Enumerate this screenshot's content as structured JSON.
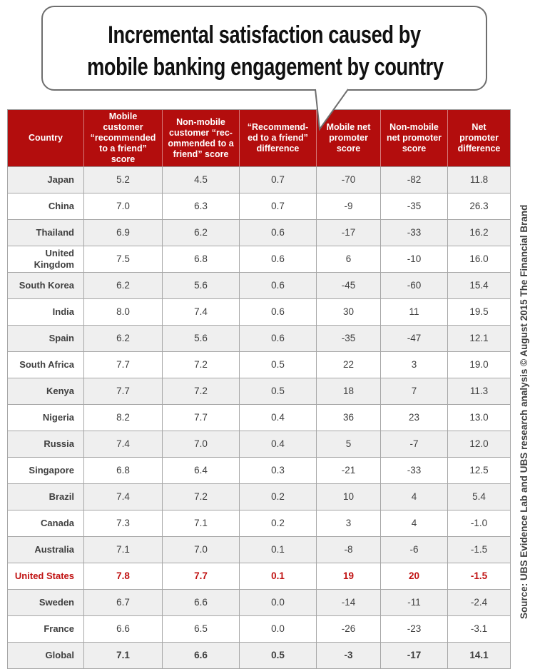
{
  "title": {
    "line1": "Incremental satisfaction caused by",
    "line2": "mobile banking engagement by country"
  },
  "source_note": "Source: UBS Evidence Lab and UBS research analysis © August 2015 The Financial Brand",
  "colors": {
    "header_bg": "#b30d0d",
    "highlight": "#c01212",
    "row_alt": "#efefef",
    "grid": "#a6a6a6",
    "text": "#3f3f3f",
    "bubble_border": "#6e6e6e"
  },
  "chart_data": {
    "type": "table",
    "title": "Incremental satisfaction caused by mobile banking engagement by country",
    "columns": [
      "Country",
      "Mobile customer “recommended to a friend” score",
      "Non-mobile customer “rec-ommended to a friend” score",
      "“Recommend-ed to a friend” difference",
      "Mobile net promoter score",
      "Non-mobile net promoter score",
      "Net promoter difference"
    ],
    "rows": [
      {
        "country": "Japan",
        "values": [
          "5.2",
          "4.5",
          "0.7",
          "-70",
          "-82",
          "11.8"
        ],
        "highlight": false,
        "bold": false
      },
      {
        "country": "China",
        "values": [
          "7.0",
          "6.3",
          "0.7",
          "-9",
          "-35",
          "26.3"
        ],
        "highlight": false,
        "bold": false
      },
      {
        "country": "Thailand",
        "values": [
          "6.9",
          "6.2",
          "0.6",
          "-17",
          "-33",
          "16.2"
        ],
        "highlight": false,
        "bold": false
      },
      {
        "country": "United Kingdom",
        "values": [
          "7.5",
          "6.8",
          "0.6",
          "6",
          "-10",
          "16.0"
        ],
        "highlight": false,
        "bold": false
      },
      {
        "country": "South Korea",
        "values": [
          "6.2",
          "5.6",
          "0.6",
          "-45",
          "-60",
          "15.4"
        ],
        "highlight": false,
        "bold": false
      },
      {
        "country": "India",
        "values": [
          "8.0",
          "7.4",
          "0.6",
          "30",
          "11",
          "19.5"
        ],
        "highlight": false,
        "bold": false
      },
      {
        "country": "Spain",
        "values": [
          "6.2",
          "5.6",
          "0.6",
          "-35",
          "-47",
          "12.1"
        ],
        "highlight": false,
        "bold": false
      },
      {
        "country": "South Africa",
        "values": [
          "7.7",
          "7.2",
          "0.5",
          "22",
          "3",
          "19.0"
        ],
        "highlight": false,
        "bold": false
      },
      {
        "country": "Kenya",
        "values": [
          "7.7",
          "7.2",
          "0.5",
          "18",
          "7",
          "11.3"
        ],
        "highlight": false,
        "bold": false
      },
      {
        "country": "Nigeria",
        "values": [
          "8.2",
          "7.7",
          "0.4",
          "36",
          "23",
          "13.0"
        ],
        "highlight": false,
        "bold": false
      },
      {
        "country": "Russia",
        "values": [
          "7.4",
          "7.0",
          "0.4",
          "5",
          "-7",
          "12.0"
        ],
        "highlight": false,
        "bold": false
      },
      {
        "country": "Singapore",
        "values": [
          "6.8",
          "6.4",
          "0.3",
          "-21",
          "-33",
          "12.5"
        ],
        "highlight": false,
        "bold": false
      },
      {
        "country": "Brazil",
        "values": [
          "7.4",
          "7.2",
          "0.2",
          "10",
          "4",
          "5.4"
        ],
        "highlight": false,
        "bold": false
      },
      {
        "country": "Canada",
        "values": [
          "7.3",
          "7.1",
          "0.2",
          "3",
          "4",
          "-1.0"
        ],
        "highlight": false,
        "bold": false
      },
      {
        "country": "Australia",
        "values": [
          "7.1",
          "7.0",
          "0.1",
          "-8",
          "-6",
          "-1.5"
        ],
        "highlight": false,
        "bold": false
      },
      {
        "country": "United States",
        "values": [
          "7.8",
          "7.7",
          "0.1",
          "19",
          "20",
          "-1.5"
        ],
        "highlight": true,
        "bold": true
      },
      {
        "country": "Sweden",
        "values": [
          "6.7",
          "6.6",
          "0.0",
          "-14",
          "-11",
          "-2.4"
        ],
        "highlight": false,
        "bold": false
      },
      {
        "country": "France",
        "values": [
          "6.6",
          "6.5",
          "0.0",
          "-26",
          "-23",
          "-3.1"
        ],
        "highlight": false,
        "bold": false
      },
      {
        "country": "Global",
        "values": [
          "7.1",
          "6.6",
          "0.5",
          "-3",
          "-17",
          "14.1"
        ],
        "highlight": false,
        "bold": true
      }
    ]
  }
}
